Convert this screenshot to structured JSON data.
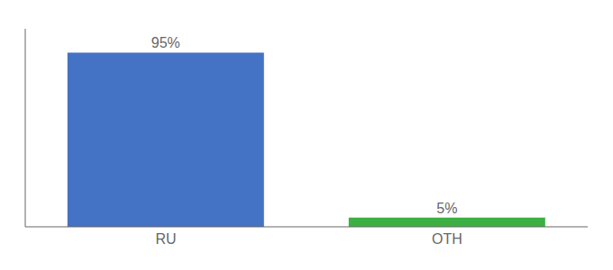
{
  "chart_data": {
    "type": "bar",
    "categories": [
      "RU",
      "OTH"
    ],
    "values": [
      95,
      5
    ],
    "value_labels": [
      "95%",
      "5%"
    ],
    "colors": [
      "#4472c4",
      "#3cb043"
    ],
    "ylim": [
      0,
      108
    ],
    "data_labels": true,
    "tick_labels": "x"
  }
}
